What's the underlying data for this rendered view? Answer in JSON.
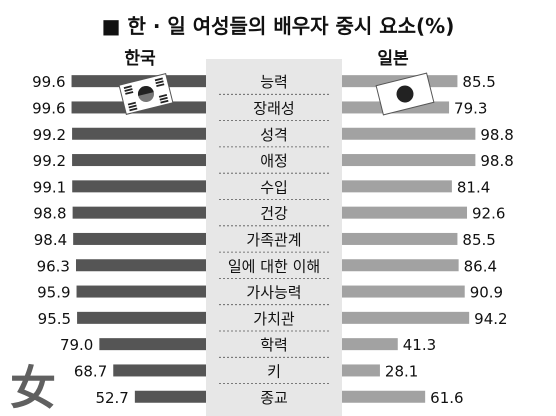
{
  "title": "■ 한 · 일 여성들의 배우자 중시 요소(%)",
  "chart_data": {
    "type": "bar",
    "subtype": "butterfly",
    "title": "■ 한 · 일 여성들의 배우자 중시 요소(%)",
    "categories": [
      "능력",
      "장래성",
      "성격",
      "애정",
      "수입",
      "건강",
      "가족관계",
      "일에 대한 이해",
      "가사능력",
      "가치관",
      "학력",
      "키",
      "종교"
    ],
    "series": [
      {
        "name": "한국",
        "values": [
          99.6,
          99.6,
          99.2,
          99.2,
          99.1,
          98.8,
          98.4,
          96.3,
          95.9,
          95.5,
          79.0,
          68.7,
          52.7
        ],
        "color": "#555555",
        "side": "left"
      },
      {
        "name": "일본",
        "values": [
          85.5,
          79.3,
          98.8,
          98.8,
          81.4,
          92.6,
          85.5,
          86.4,
          90.9,
          94.2,
          41.3,
          28.1,
          61.6
        ],
        "color": "#a2a2a2",
        "side": "right"
      }
    ],
    "value_labels": {
      "korea": [
        "99.6",
        "99.6",
        "99.2",
        "99.2",
        "99.1",
        "98.8",
        "98.4",
        "96.3",
        "95.9",
        "95.5",
        "79.0",
        "68.7",
        "52.7"
      ],
      "japan": [
        "85.5",
        "79.3",
        "98.8",
        "98.8",
        "81.4",
        "92.6",
        "85.5",
        "86.4",
        "90.9",
        "94.2",
        "41.3",
        "28.1",
        "61.6"
      ]
    },
    "xlim": [
      0,
      100
    ],
    "legend": "column headers above each side",
    "colors": {
      "korea_bar": "#555555",
      "japan_bar": "#a2a2a2",
      "center_column": "#e7e7e7"
    }
  },
  "decorations": {
    "korea_flag_icon": "korea-flag-icon",
    "japan_flag_icon": "japan-flag-icon",
    "watermark_char": "女"
  }
}
